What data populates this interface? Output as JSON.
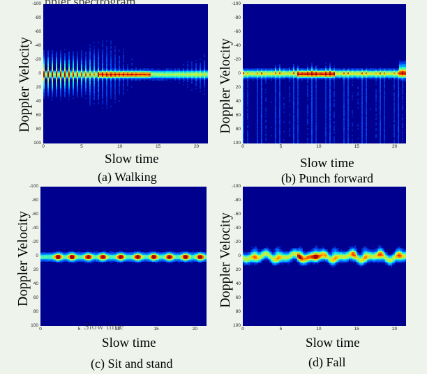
{
  "overlay_top": "ppler spectrogram,",
  "overlay_c": "Slow time",
  "chart_data": [
    {
      "type": "heatmap",
      "caption": "(a) Walking",
      "xlabel": "Slow time",
      "ylabel": "Doppler Velocity",
      "xticks": [
        "0",
        "5",
        "10",
        "15",
        "20"
      ],
      "yticks": [
        "-100",
        "-80",
        "-60",
        "-40",
        "-20",
        "0",
        "20",
        "40",
        "60",
        "80",
        "100"
      ],
      "xlim": [
        0,
        21.5
      ],
      "ylim": [
        -100,
        100
      ],
      "pattern": "walking",
      "colormap": [
        "#00008f",
        "#0050ff",
        "#00e0ff",
        "#80ff80",
        "#ffe000",
        "#ff5000",
        "#a00000"
      ]
    },
    {
      "type": "heatmap",
      "caption": "(b) Punch forward",
      "xlabel": "Slow time",
      "ylabel": "Doppler Velocity",
      "xticks": [
        "0",
        "5",
        "10",
        "15",
        "20"
      ],
      "yticks": [
        "-100",
        "-80",
        "-60",
        "-40",
        "-20",
        "0",
        "20",
        "40",
        "60",
        "80",
        "100"
      ],
      "xlim": [
        0,
        21.5
      ],
      "ylim": [
        -100,
        100
      ],
      "pattern": "punch",
      "colormap": [
        "#00008f",
        "#0050ff",
        "#00e0ff",
        "#80ff80",
        "#ffe000",
        "#ff5000",
        "#a00000"
      ]
    },
    {
      "type": "heatmap",
      "caption": "(c) Sit and stand",
      "xlabel": "Slow time",
      "ylabel": "Doppler Velocity",
      "xticks": [
        "0",
        "5",
        "10",
        "15",
        "20"
      ],
      "yticks": [
        "-100",
        "-80",
        "-60",
        "-40",
        "-20",
        "0",
        "20",
        "40",
        "60",
        "80",
        "100"
      ],
      "xlim": [
        0,
        21.5
      ],
      "ylim": [
        -100,
        100
      ],
      "pattern": "sit",
      "colormap": [
        "#00008f",
        "#0050ff",
        "#00e0ff",
        "#80ff80",
        "#ffe000",
        "#ff5000",
        "#a00000"
      ]
    },
    {
      "type": "heatmap",
      "caption": "(d) Fall",
      "xlabel": "Slow time",
      "ylabel": "Doppler Velocity",
      "xticks": [
        "0",
        "5",
        "10",
        "15",
        "20"
      ],
      "yticks": [
        "-100",
        "-80",
        "-60",
        "-40",
        "-20",
        "0",
        "20",
        "40",
        "60",
        "80",
        "100"
      ],
      "xlim": [
        0,
        21.5
      ],
      "ylim": [
        -100,
        100
      ],
      "pattern": "fall",
      "colormap": [
        "#00008f",
        "#0050ff",
        "#00e0ff",
        "#80ff80",
        "#ffe000",
        "#ff5000",
        "#a00000"
      ]
    }
  ]
}
